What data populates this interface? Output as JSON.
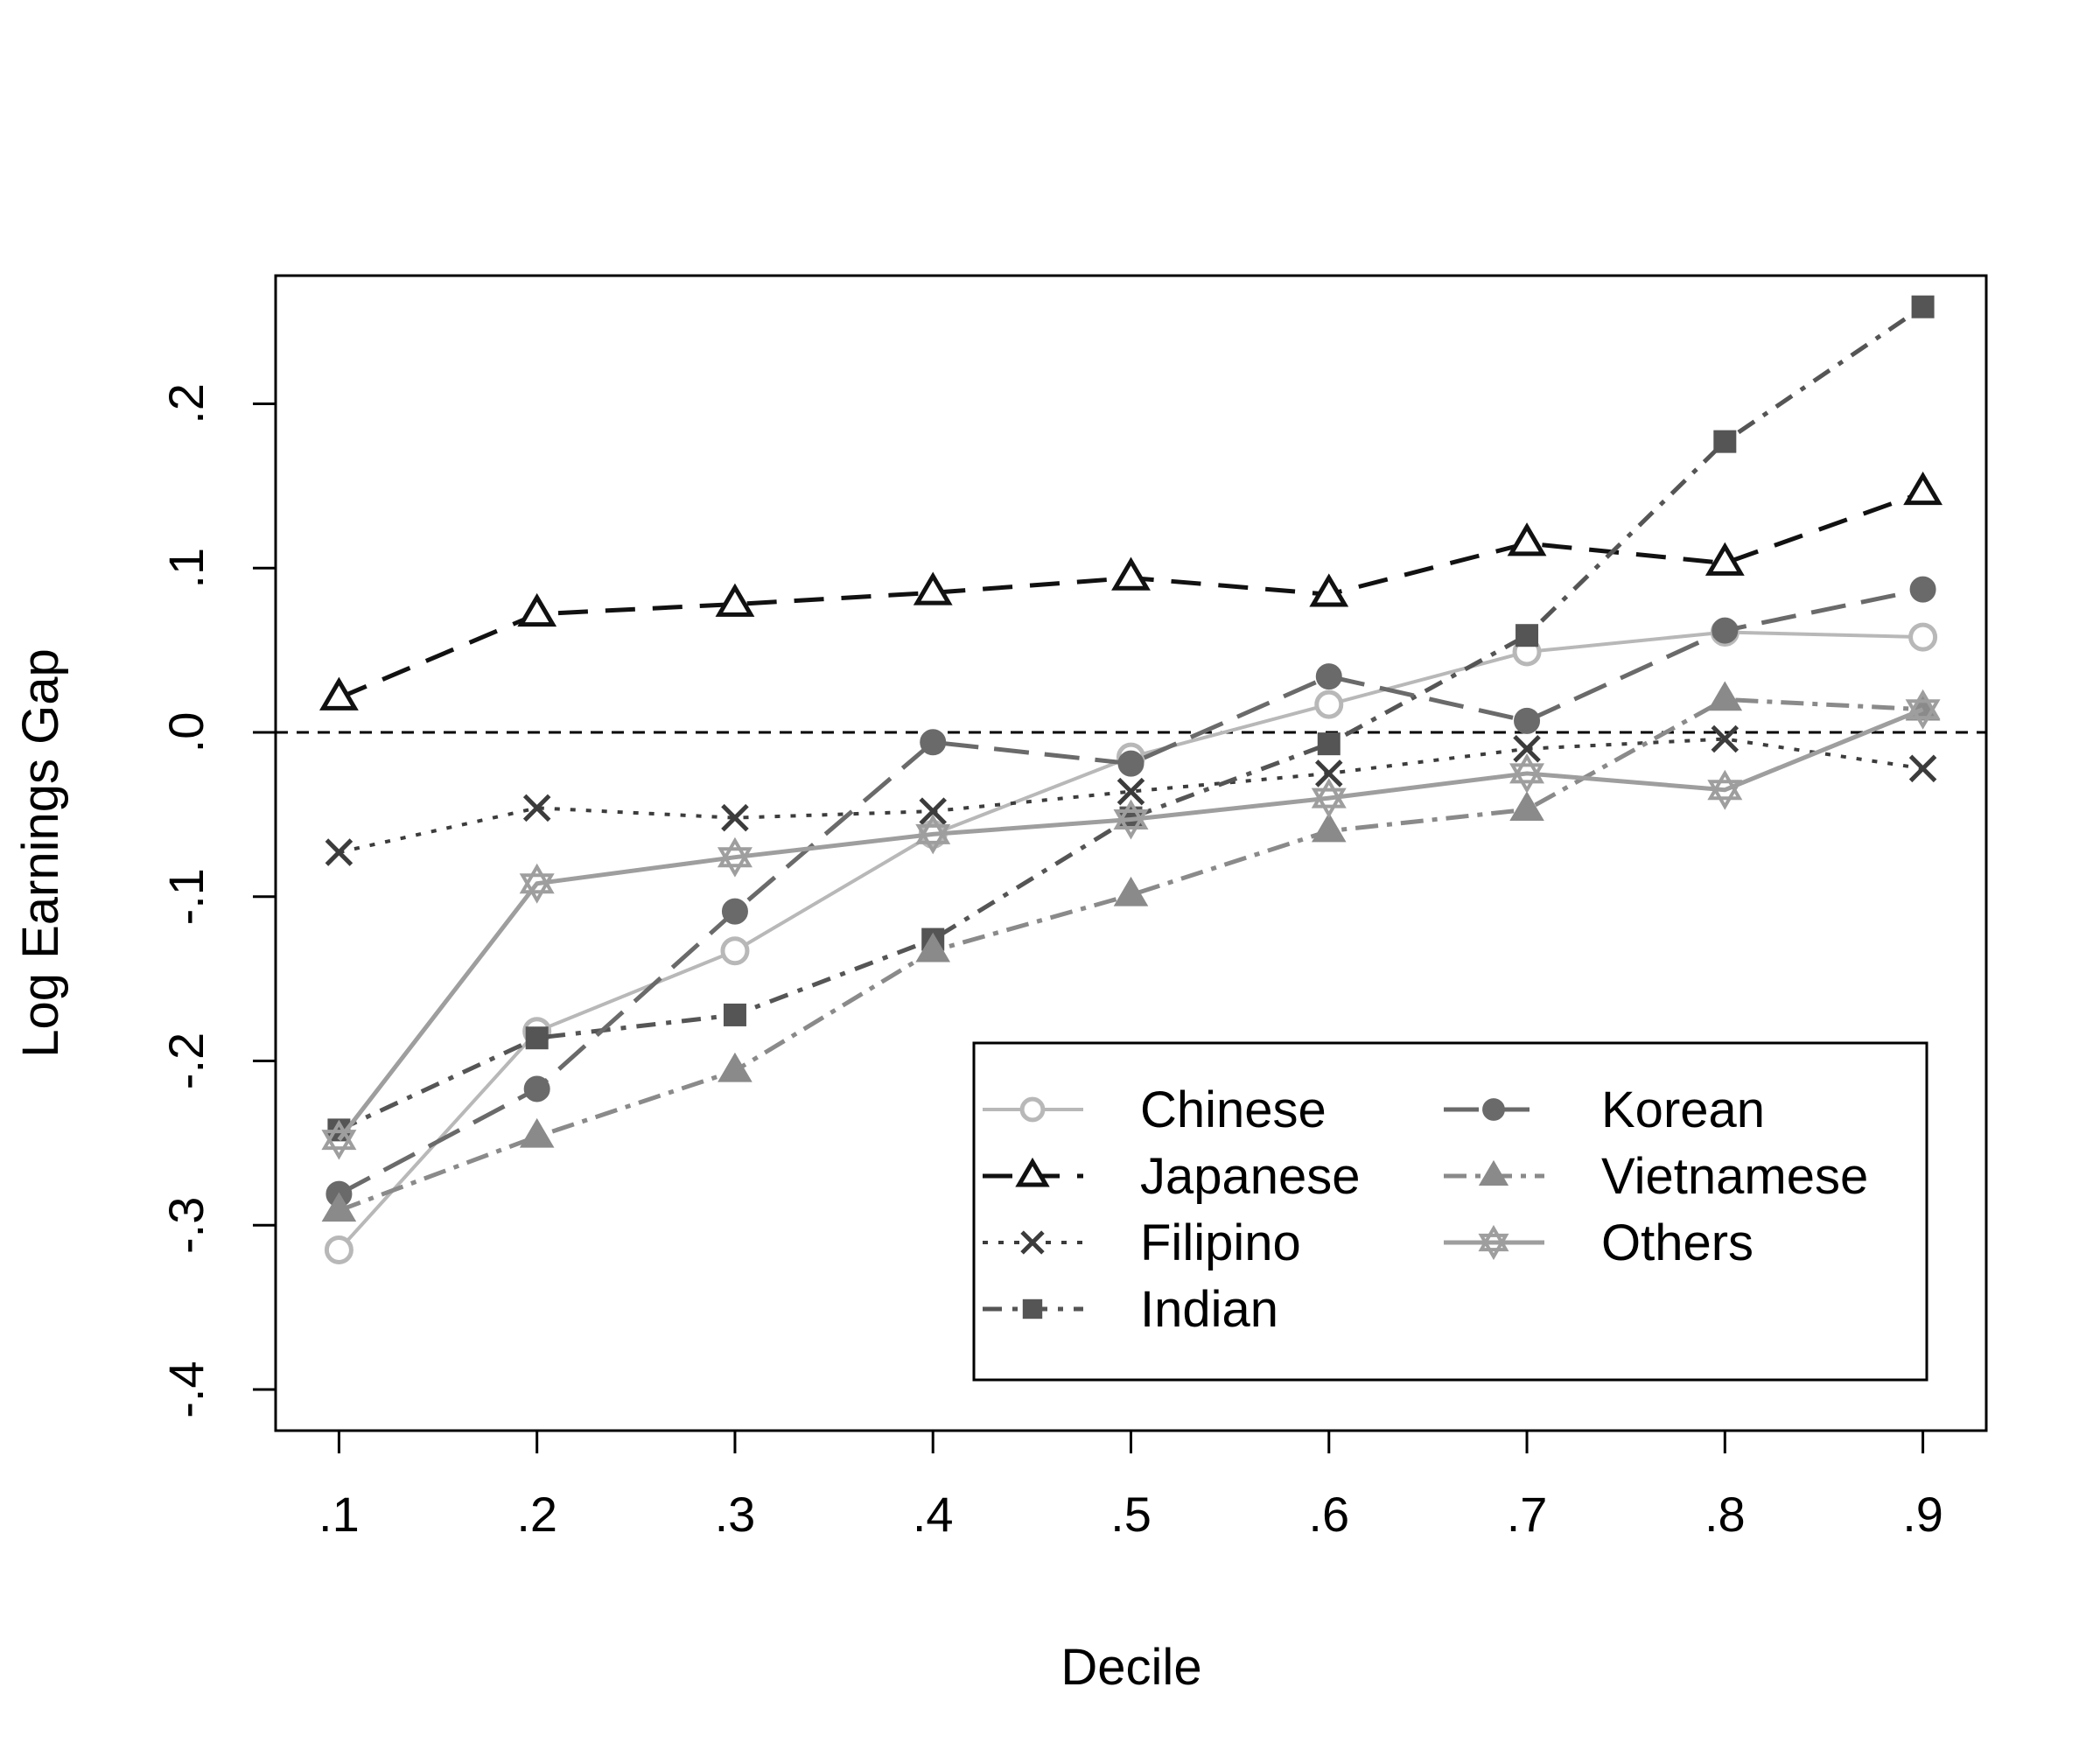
{
  "chart_data": {
    "type": "line",
    "title": "",
    "xlabel": "Decile",
    "ylabel": "Log Earnings Gap",
    "x": [
      0.1,
      0.2,
      0.3,
      0.4,
      0.5,
      0.6,
      0.7,
      0.8,
      0.9
    ],
    "xtick_labels": [
      ".1",
      ".2",
      ".3",
      ".4",
      ".5",
      ".6",
      ".7",
      ".8",
      ".9"
    ],
    "yticks": [
      -0.4,
      -0.3,
      -0.2,
      -0.1,
      0.0,
      0.1,
      0.2
    ],
    "ytick_labels": [
      "-.4",
      "-.3",
      "-.2",
      "-.1",
      ".0",
      ".1",
      ".2"
    ],
    "xlim": [
      0.068,
      0.932
    ],
    "ylim": [
      -0.425,
      0.278
    ],
    "reference_line": 0,
    "grid": false,
    "legend_position": "bottom-right",
    "series": [
      {
        "name": "Chinese",
        "values": [
          -0.315,
          -0.182,
          -0.133,
          -0.062,
          -0.015,
          0.017,
          0.049,
          0.061,
          0.058
        ],
        "color": "#b8b8b8",
        "marker": "circle-open",
        "dash": "",
        "width": 4
      },
      {
        "name": "Japanese",
        "values": [
          0.021,
          0.072,
          0.078,
          0.085,
          0.094,
          0.084,
          0.115,
          0.103,
          0.146
        ],
        "color": "#111111",
        "marker": "triangle-open",
        "dash": "34 20",
        "width": 5
      },
      {
        "name": "Filipino",
        "values": [
          -0.073,
          -0.046,
          -0.052,
          -0.048,
          -0.036,
          -0.025,
          -0.01,
          -0.004,
          -0.022
        ],
        "color": "#3c3c3c",
        "marker": "x",
        "dash": "6 12",
        "width": 4
      },
      {
        "name": "Indian",
        "values": [
          -0.242,
          -0.186,
          -0.172,
          -0.126,
          -0.052,
          -0.007,
          0.059,
          0.177,
          0.259
        ],
        "color": "#555555",
        "marker": "square-filled",
        "dash": "22 12 6 12",
        "width": 5
      },
      {
        "name": "Korean",
        "values": [
          -0.281,
          -0.217,
          -0.109,
          -0.006,
          -0.019,
          0.034,
          0.007,
          0.062,
          0.087
        ],
        "color": "#6a6a6a",
        "marker": "circle-filled",
        "dash": "40 18",
        "width": 5
      },
      {
        "name": "Vietnamese",
        "values": [
          -0.291,
          -0.246,
          -0.206,
          -0.133,
          -0.099,
          -0.06,
          -0.047,
          0.02,
          0.014
        ],
        "color": "#8a8a8a",
        "marker": "triangle-filled",
        "dash": "26 10 6 10",
        "width": 5
      },
      {
        "name": "Others",
        "values": [
          -0.248,
          -0.092,
          -0.076,
          -0.062,
          -0.053,
          -0.04,
          -0.025,
          -0.035,
          0.014
        ],
        "color": "#9e9e9e",
        "marker": "star-open",
        "dash": "",
        "width": 5
      }
    ]
  }
}
